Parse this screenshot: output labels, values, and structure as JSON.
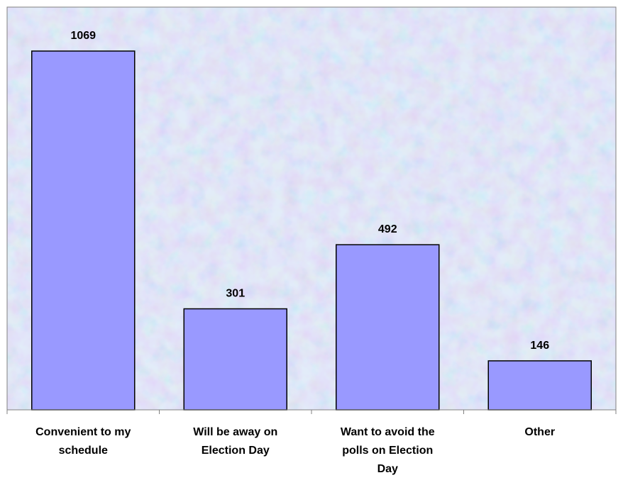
{
  "chart_data": {
    "type": "bar",
    "categories": [
      "Convenient to my schedule",
      "Will be away on Election Day",
      "Want to avoid the polls on Election Day",
      "Other"
    ],
    "category_label_lines": [
      [
        "Convenient to my",
        "schedule"
      ],
      [
        "Will be away on",
        "Election Day"
      ],
      [
        "Want to avoid the",
        "polls on Election",
        "Day"
      ],
      [
        "Other"
      ]
    ],
    "values": [
      1069,
      301,
      492,
      146
    ],
    "data_labels": [
      "1069",
      "301",
      "492",
      "146"
    ],
    "title": "",
    "xlabel": "",
    "ylabel": "",
    "ylim": [
      0,
      1200
    ],
    "grid": false,
    "legend": "none",
    "colors": {
      "bar_fill": "#9999FF",
      "bar_stroke": "#000000",
      "plot_background": "#c8dcf3",
      "plot_texture_pink": "#e7c6e2",
      "plot_texture_blue": "#b3cff0",
      "plot_border": "#808080",
      "axis": "#808080",
      "label_text": "#000000"
    }
  }
}
